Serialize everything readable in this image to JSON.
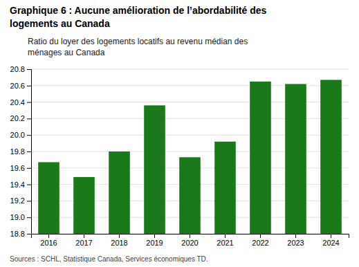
{
  "chart_data": {
    "type": "bar",
    "title": [
      "Graphique 6 : Aucune amélioration de l’abordabilité des",
      "logements au Canada"
    ],
    "subtitle": [
      "Ratio du loyer des logements locatifs au revenu médian des",
      "ménages au Canada"
    ],
    "annotations": [
      "Sources : SCHL, Statistique Canada, Services économiques TD."
    ],
    "categories": [
      "2016",
      "2017",
      "2018",
      "2019",
      "2020",
      "2021",
      "2022",
      "2023",
      "2024"
    ],
    "values": [
      19.67,
      19.49,
      19.8,
      20.36,
      19.73,
      19.92,
      20.65,
      20.62,
      20.67
    ],
    "color": "#1a7a1a",
    "ylim": [
      18.8,
      20.8
    ],
    "yticks": [
      18.8,
      {
        "value": 19.0,
        "label": "19.0"
      },
      19.2,
      19.4,
      19.6,
      19.8,
      {
        "value": 20.0,
        "label": "20.0"
      },
      20.2,
      20.4,
      20.6,
      20.8
    ],
    "grid": true
  }
}
